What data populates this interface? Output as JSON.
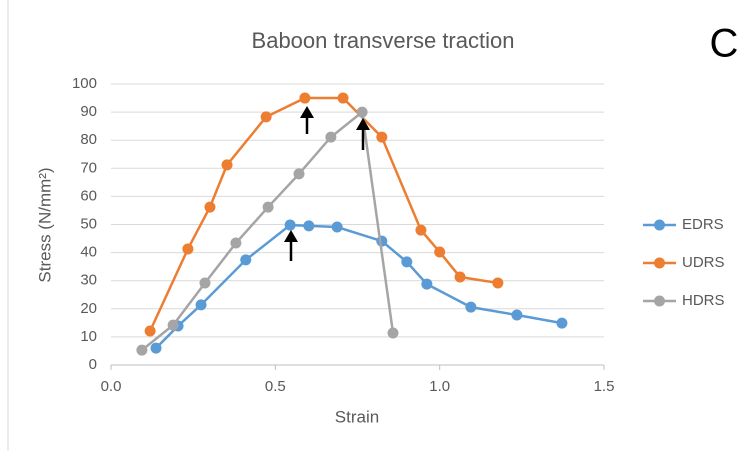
{
  "chart_data": {
    "type": "line",
    "title": "Baboon transverse traction",
    "panel_label": "C",
    "x_label": "Strain",
    "y_label": "Stress (N/mm²)",
    "xlim": [
      0,
      1.5
    ],
    "xticks": [
      {
        "value": 0,
        "label": "0.0"
      },
      0.5,
      {
        "value": 1,
        "label": "1.0"
      },
      1.5
    ],
    "ylim": [
      0,
      100
    ],
    "yticks": [
      0,
      10,
      20,
      30,
      40,
      50,
      60,
      70,
      80,
      90,
      100
    ],
    "grid": true,
    "legend": "right",
    "series": [
      {
        "name": "EDRS",
        "color": "#5b9bd5",
        "x": [
          0.137,
          0.204,
          0.274,
          0.41,
          0.545,
          0.602,
          0.688,
          0.824,
          0.9,
          0.961,
          1.095,
          1.235,
          1.372
        ],
        "values": [
          6.0,
          13.9,
          21.4,
          37.4,
          49.8,
          49.5,
          49.1,
          44.1,
          36.7,
          28.8,
          20.6,
          17.8,
          14.9
        ]
      },
      {
        "name": "UDRS",
        "color": "#ed7d31",
        "x": [
          0.119,
          0.234,
          0.301,
          0.353,
          0.472,
          0.59,
          0.706,
          0.824,
          0.943,
          1.0,
          1.062,
          1.177
        ],
        "values": [
          12.1,
          41.3,
          56.2,
          71.2,
          88.3,
          95.0,
          95.0,
          81.1,
          48.0,
          40.2,
          31.3,
          29.2
        ]
      },
      {
        "name": "HDRS",
        "color": "#a5a5a5",
        "x": [
          0.094,
          0.189,
          0.286,
          0.38,
          0.478,
          0.572,
          0.669,
          0.764,
          0.858
        ],
        "values": [
          5.3,
          14.2,
          29.2,
          43.4,
          56.2,
          68.0,
          81.1,
          90.0,
          11.4
        ]
      }
    ]
  }
}
